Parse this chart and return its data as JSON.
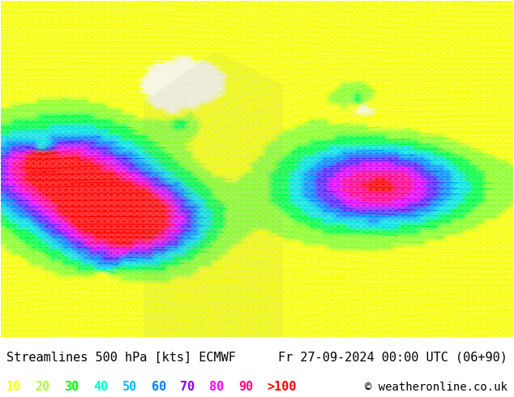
{
  "title_left": "Streamlines 500 hPa [kts] ECMWF",
  "title_right": "Fr 27-09-2024 00:00 UTC (06+90)",
  "copyright": "© weatheronline.co.uk",
  "legend_values": [
    "10",
    "20",
    "30",
    "40",
    "50",
    "60",
    "70",
    "80",
    "90",
    ">100"
  ],
  "legend_colors": [
    "#ffff00",
    "#adff2f",
    "#00ff00",
    "#00ffcc",
    "#00bfff",
    "#0080ff",
    "#8000ff",
    "#ff00ff",
    "#ff0080",
    "#ff0000"
  ],
  "background_color": "#ffffff",
  "map_bg": "#f0f0f0",
  "streamline_colors": {
    "calm": "#ffff99",
    "light": "#ccff66",
    "moderate": "#66ff66",
    "fresh": "#00ffcc",
    "strong": "#0099ff",
    "gale": "#6600ff",
    "storm": "#ff00ff"
  },
  "title_fontsize": 11,
  "legend_fontsize": 11,
  "copyright_fontsize": 10,
  "fig_width": 6.34,
  "fig_height": 4.9,
  "dpi": 100
}
